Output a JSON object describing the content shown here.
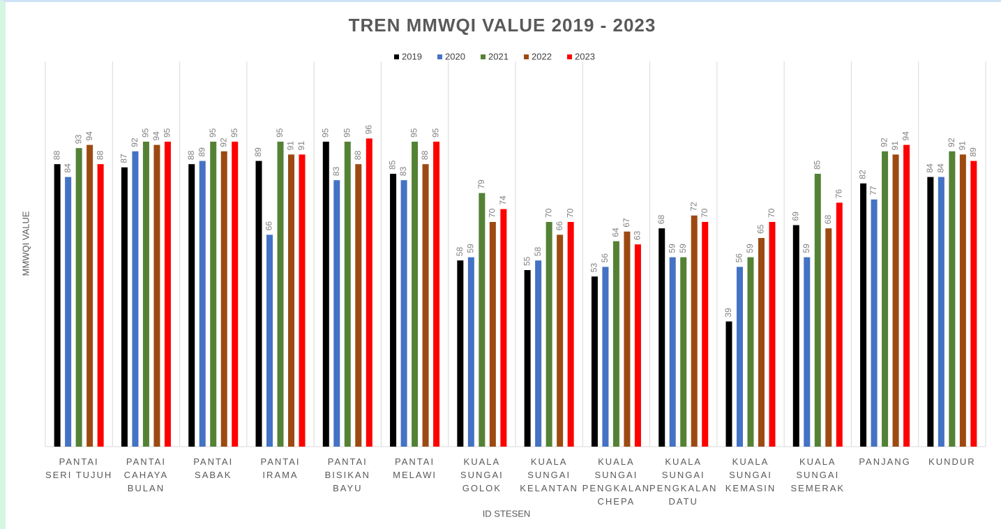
{
  "chart_data": {
    "type": "bar",
    "title": "TREN MMWQI VALUE 2019 - 2023",
    "x_label": "ID STESEN",
    "y_label": "MMWQI VALUE",
    "categories": [
      "PANTAI\nSERI TUJUH",
      "PANTAI\nCAHAYA\nBULAN",
      "PANTAI\nSABAK",
      "PANTAI\nIRAMA",
      "PANTAI\nBISIKAN\nBAYU",
      "PANTAI\nMELAWI",
      "KUALA\nSUNGAI\nGOLOK",
      "KUALA\nSUNGAI\nKELANTAN",
      "KUALA\nSUNGAI\nPENGKALAN\nCHEPA",
      "KUALA\nSUNGAI\nPENGKALAN\nDATU",
      "KUALA\nSUNGAI\nKEMASIN",
      "KUALA\nSUNGAI\nSEMERAK",
      "PANJANG",
      "KUNDUR"
    ],
    "series": [
      {
        "name": "2019",
        "color": "#000000",
        "values": [
          88,
          87,
          88,
          89,
          95,
          85,
          58,
          55,
          53,
          68,
          39,
          69,
          82,
          84
        ]
      },
      {
        "name": "2020",
        "color": "#4472c4",
        "values": [
          84,
          92,
          89,
          66,
          83,
          83,
          59,
          58,
          56,
          59,
          56,
          59,
          77,
          84
        ]
      },
      {
        "name": "2021",
        "color": "#548235",
        "values": [
          93,
          95,
          95,
          95,
          95,
          95,
          79,
          70,
          64,
          59,
          59,
          85,
          92,
          92
        ]
      },
      {
        "name": "2022",
        "color": "#9c4a12",
        "values": [
          94,
          94,
          92,
          91,
          88,
          88,
          70,
          66,
          67,
          72,
          65,
          68,
          91,
          91
        ]
      },
      {
        "name": "2023",
        "color": "#ff0000",
        "values": [
          88,
          95,
          95,
          91,
          96,
          95,
          74,
          70,
          63,
          70,
          70,
          76,
          94,
          89
        ]
      }
    ],
    "ylim": [
      0,
      120
    ],
    "grid": true,
    "legend": "top"
  }
}
